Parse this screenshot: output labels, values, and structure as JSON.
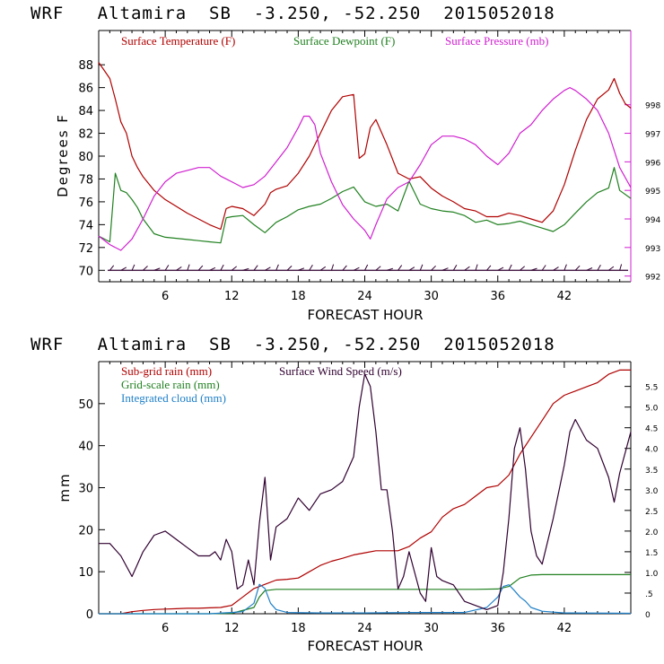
{
  "chart_data": [
    {
      "type": "line",
      "title": "WRF   Altamira  SB  -3.250, -52.250  2015052018",
      "xlabel": "FORECAST HOUR",
      "ylabel": "Degrees F",
      "xlim": [
        0,
        48
      ],
      "ylim": [
        69,
        91
      ],
      "y2lim": [
        991.8,
        1000.6
      ],
      "xticks": [
        "6",
        "12",
        "18",
        "24",
        "30",
        "36",
        "42"
      ],
      "yticks": [
        "70",
        "72",
        "74",
        "76",
        "78",
        "80",
        "82",
        "84",
        "86",
        "88"
      ],
      "y2ticks": [
        "992",
        "993",
        "994",
        "995",
        "996",
        "997",
        "998"
      ],
      "wind_barb_level": 70,
      "colors": {
        "temperature": "#b00000",
        "dewpoint": "#208020",
        "pressure": "#d020d0",
        "wind": "#300030"
      },
      "series": [
        {
          "name": "Surface Temperature (F)",
          "axis": "left",
          "x": [
            0,
            0.5,
            1,
            1.5,
            2,
            2.5,
            3,
            3.5,
            4,
            5,
            6,
            7,
            8,
            9,
            10,
            11,
            11.5,
            12,
            13,
            14,
            15,
            15.5,
            16,
            17,
            18,
            19,
            20,
            21,
            22,
            23,
            23.5,
            24,
            24.5,
            25,
            26,
            27,
            28,
            29,
            30,
            31,
            32,
            33,
            34,
            35,
            36,
            37,
            38,
            39,
            40,
            41,
            42,
            43,
            44,
            45,
            46,
            46.5,
            47,
            47.5,
            48
          ],
          "values": [
            88.2,
            87.5,
            86.8,
            85,
            83,
            82,
            80,
            79,
            78.2,
            77,
            76.2,
            75.6,
            75,
            74.5,
            74,
            73.6,
            75.4,
            75.6,
            75.4,
            74.8,
            75.8,
            76.8,
            77.1,
            77.4,
            78.5,
            80,
            82,
            84,
            85.2,
            85.4,
            79.8,
            80.2,
            82.5,
            83.2,
            81,
            78.5,
            78,
            78.2,
            77.2,
            76.5,
            76,
            75.4,
            75.2,
            74.7,
            74.7,
            75,
            74.8,
            74.5,
            74.2,
            75.2,
            77.5,
            80.5,
            83.2,
            85,
            85.8,
            86.8,
            85.5,
            84.6,
            84.2
          ]
        },
        {
          "name": "Surface Dewpoint (F)",
          "axis": "left",
          "x": [
            0,
            1,
            1.5,
            2,
            2.5,
            3,
            3.5,
            4,
            5,
            6,
            7,
            8,
            9,
            10,
            11,
            11.5,
            12,
            13,
            14,
            15,
            16,
            17,
            18,
            19,
            20,
            21,
            22,
            23,
            24,
            25,
            26,
            27,
            28,
            29,
            30,
            31,
            32,
            33,
            34,
            35,
            36,
            37,
            38,
            39,
            40,
            41,
            42,
            43,
            44,
            45,
            46,
            46.5,
            47,
            48
          ],
          "values": [
            73,
            72.5,
            78.5,
            77,
            76.8,
            76.2,
            75.5,
            74.5,
            73.2,
            72.9,
            72.8,
            72.7,
            72.6,
            72.5,
            72.4,
            74.6,
            74.7,
            74.8,
            74,
            73.3,
            74.2,
            74.7,
            75.3,
            75.6,
            75.8,
            76.3,
            76.9,
            77.3,
            76,
            75.6,
            75.8,
            75.2,
            77.8,
            75.8,
            75.4,
            75.2,
            75.1,
            74.8,
            74.2,
            74.4,
            74,
            74.1,
            74.3,
            74,
            73.7,
            73.4,
            74,
            75,
            76,
            76.8,
            77.2,
            79,
            77,
            76.3
          ]
        },
        {
          "name": "Surface Pressure (mb)",
          "axis": "right",
          "x": [
            0,
            1,
            2,
            3,
            4,
            5,
            6,
            7,
            8,
            9,
            10,
            11,
            12,
            13,
            14,
            15,
            16,
            17,
            18,
            18.5,
            19,
            19.5,
            20,
            21,
            22,
            23,
            24,
            24.5,
            25,
            26,
            27,
            28,
            29,
            30,
            31,
            32,
            33,
            34,
            35,
            36,
            37,
            38,
            39,
            40,
            41,
            42,
            42.5,
            43,
            44,
            45,
            46,
            47,
            48
          ],
          "values": [
            993.4,
            993.1,
            992.9,
            993.3,
            994,
            994.8,
            995.3,
            995.6,
            995.7,
            995.8,
            995.8,
            995.5,
            995.3,
            995.1,
            995.2,
            995.5,
            996,
            996.5,
            997.2,
            997.6,
            997.6,
            997.3,
            996.3,
            995.3,
            994.5,
            994,
            993.6,
            993.3,
            993.8,
            994.7,
            995.1,
            995.3,
            995.9,
            996.6,
            996.9,
            996.9,
            996.8,
            996.6,
            996.2,
            995.9,
            996.3,
            997,
            997.3,
            997.8,
            998.2,
            998.5,
            998.6,
            998.5,
            998.2,
            997.8,
            997,
            995.8,
            995.1
          ]
        }
      ]
    },
    {
      "type": "line",
      "title": "WRF   Altamira  SB  -3.250, -52.250  2015052018",
      "xlabel": "FORECAST HOUR",
      "ylabel": "mm",
      "xlim": [
        0,
        48
      ],
      "ylim": [
        0,
        60
      ],
      "y2lim": [
        0,
        6.1
      ],
      "xticks": [
        "6",
        "12",
        "18",
        "24",
        "30",
        "36",
        "42"
      ],
      "yticks": [
        "0",
        "10",
        "20",
        "30",
        "40",
        "50"
      ],
      "y2ticks": [
        "0",
        ".5",
        "1.0",
        "1.5",
        "2.0",
        "2.5",
        "3.0",
        "3.5",
        "4.0",
        "4.5",
        "5.0",
        "5.5"
      ],
      "colors": {
        "subgrid": "#b00000",
        "gridscale": "#208020",
        "cloud": "#2080c8",
        "wind": "#300030"
      },
      "series": [
        {
          "name": "Sub-grid rain (mm)",
          "axis": "left",
          "x": [
            0,
            2,
            3,
            4,
            5,
            6,
            7,
            8,
            9,
            10,
            11,
            12,
            13,
            14,
            15,
            16,
            17,
            18,
            19,
            20,
            21,
            22,
            23,
            24,
            25,
            26,
            27,
            28,
            29,
            30,
            31,
            32,
            33,
            34,
            35,
            36,
            37,
            38,
            39,
            40,
            41,
            42,
            43,
            44,
            45,
            46,
            47,
            48
          ],
          "values": [
            0,
            0,
            0.5,
            0.8,
            1,
            1.1,
            1.2,
            1.3,
            1.3,
            1.4,
            1.5,
            2,
            4,
            6,
            7,
            8,
            8.2,
            8.5,
            10,
            11.5,
            12.5,
            13.2,
            14,
            14.5,
            15,
            15,
            15,
            16,
            18,
            19.5,
            23,
            25,
            26,
            28,
            30,
            30.5,
            33,
            38,
            42,
            46,
            50,
            52,
            53,
            54,
            55,
            57,
            58,
            58
          ]
        },
        {
          "name": "Grid-scale rain (mm)",
          "axis": "left",
          "x": [
            0,
            10,
            12,
            14,
            14.5,
            15,
            16,
            20,
            24,
            30,
            34,
            36,
            37,
            38,
            39,
            40,
            44,
            48
          ],
          "values": [
            0,
            0,
            0.1,
            1.5,
            4,
            5.5,
            5.8,
            5.8,
            5.8,
            5.8,
            5.8,
            5.9,
            6.5,
            8.5,
            9.2,
            9.3,
            9.3,
            9.3
          ]
        },
        {
          "name": "Integrated cloud (mm)",
          "axis": "left",
          "x": [
            0,
            10,
            12,
            13,
            14,
            14.5,
            15,
            15.5,
            16,
            17,
            20,
            24,
            28,
            30,
            33,
            35,
            36,
            36.5,
            37,
            37.5,
            38,
            38.5,
            39,
            40,
            42,
            48
          ],
          "values": [
            0,
            0,
            0.3,
            0.5,
            2.5,
            7,
            6,
            2.5,
            1,
            0.3,
            0.2,
            0.2,
            0.3,
            0.3,
            0.3,
            1.5,
            4,
            6.5,
            6.9,
            5.5,
            4,
            3,
            1.5,
            0.6,
            0.2,
            0.1
          ]
        },
        {
          "name": "Surface Wind Speed (m/s)",
          "axis": "right",
          "x": [
            0,
            1,
            2,
            3,
            4,
            5,
            6,
            7,
            8,
            9,
            10,
            10.5,
            11,
            11.5,
            12,
            12.5,
            13,
            13.5,
            14,
            14.5,
            15,
            15.5,
            16,
            17,
            18,
            19,
            20,
            21,
            22,
            23,
            23.5,
            24,
            24.5,
            25,
            25.5,
            26,
            26.5,
            27,
            27.5,
            28,
            29,
            29.5,
            30,
            30.5,
            31,
            32,
            33,
            34,
            35,
            36,
            36.5,
            37,
            37.5,
            38,
            38.5,
            39,
            39.5,
            40,
            41,
            42,
            42.5,
            43,
            44,
            45,
            46,
            46.5,
            47,
            48
          ],
          "values": [
            1.7,
            1.7,
            1.4,
            0.9,
            1.5,
            1.9,
            2.0,
            1.8,
            1.6,
            1.4,
            1.4,
            1.5,
            1.3,
            1.8,
            1.5,
            0.6,
            0.7,
            1.3,
            0.7,
            2.2,
            3.3,
            1.3,
            2.1,
            2.3,
            2.8,
            2.5,
            2.9,
            3.0,
            3.2,
            3.8,
            5.0,
            5.8,
            5.5,
            4.4,
            3.0,
            3.0,
            2.0,
            0.6,
            0.9,
            1.5,
            0.5,
            0.3,
            1.6,
            0.9,
            0.8,
            0.7,
            0.3,
            0.2,
            0.1,
            0.2,
            1.0,
            2.3,
            4.0,
            4.5,
            3.5,
            2.0,
            1.4,
            1.2,
            2.3,
            3.6,
            4.4,
            4.7,
            4.2,
            4.0,
            3.3,
            2.7,
            3.4,
            4.4
          ]
        }
      ]
    }
  ]
}
